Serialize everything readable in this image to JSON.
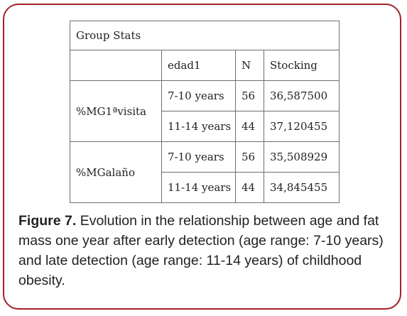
{
  "table": {
    "title": "Group Stats",
    "headers": [
      "",
      "edad1",
      "N",
      "Stocking"
    ],
    "groups": [
      {
        "label": "%MG1ªvisita",
        "rows": [
          {
            "age": "7-10 years",
            "n": "56",
            "value": "36,587500"
          },
          {
            "age": "11-14 years",
            "n": "44",
            "value": "37,120455"
          }
        ]
      },
      {
        "label": "%MGalaño",
        "rows": [
          {
            "age": "7-10 years",
            "n": "56",
            "value": "35,508929"
          },
          {
            "age": "11-14 years",
            "n": "44",
            "value": "34,845455"
          }
        ]
      }
    ]
  },
  "caption": {
    "label": "Figure 7.",
    "text": " Evolution in the relationship between age and fat mass one year after early detection (age range: 7-10 years) and late detection (age range: 11-14 years) of childhood obesity."
  },
  "colors": {
    "border": "#a3202a",
    "grid": "#6f6f6f",
    "text": "#222222"
  }
}
